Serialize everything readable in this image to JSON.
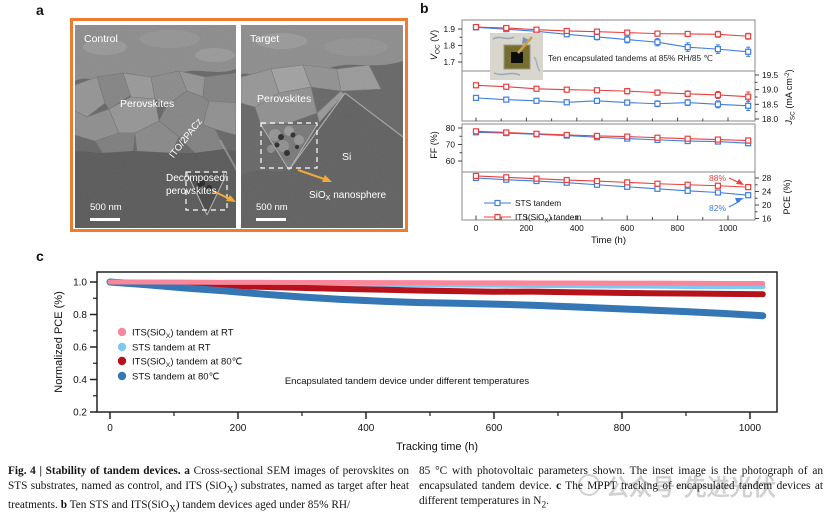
{
  "figure": {
    "letters": {
      "a": "a",
      "b": "b",
      "c": "c"
    }
  },
  "panel_a": {
    "border_color": "#ee7c30",
    "arrow_color": "#f2a93b",
    "control": {
      "tag": "Control",
      "layer": "Perovskites",
      "interface": "ITO/2PACz",
      "callout1": "Decomposed",
      "callout2": "perovskites",
      "scalebar": "500 nm"
    },
    "target": {
      "tag": "Target",
      "layer": "Perovskites",
      "si": "Si",
      "callout_pre": "SiO",
      "callout_sub": "X",
      "callout_post": " nanosphere",
      "scalebar": "500 nm"
    }
  },
  "chart_data": [
    {
      "id": "aging-parameters",
      "type": "line",
      "xlabel": "Time (h)",
      "note": "Ten encapsulated tandems at 85% RH/85 ℃",
      "x": [
        0,
        120,
        240,
        360,
        480,
        600,
        720,
        840,
        960,
        1080
      ],
      "xticks": [
        0,
        200,
        400,
        600,
        800,
        1000
      ],
      "xticklabels": [
        "0",
        "200",
        "400",
        "600",
        "800",
        "1000"
      ],
      "xminor": [
        100,
        300,
        500,
        700,
        900
      ],
      "colors": {
        "STS": "#3f7ee0",
        "ITS": "#e9403e"
      },
      "legend": [
        {
          "key": "STS",
          "runs": [
            {
              "t": "STS tandem"
            }
          ]
        },
        {
          "key": "ITS",
          "runs": [
            {
              "t": "ITS(SiO"
            },
            {
              "t": "X",
              "s": "sub"
            },
            {
              "t": ") tandem"
            }
          ]
        }
      ],
      "subplots": [
        {
          "name": "voc",
          "side": "left",
          "yticks": [
            1.7,
            1.8,
            1.9
          ],
          "yticklabels": [
            "1.7",
            "1.8",
            "1.9"
          ],
          "yminor": [
            1.75,
            1.85
          ],
          "ylabel_runs": [
            {
              "t": "V",
              "i": 1
            },
            {
              "t": "OC",
              "s": "sub"
            },
            {
              "t": " (V)"
            }
          ],
          "series": [
            {
              "key": "STS",
              "values": [
                1.91,
                1.899,
                1.886,
                1.868,
                1.852,
                1.836,
                1.82,
                1.79,
                1.778,
                1.762
              ],
              "err": [
                0.008,
                0.01,
                0.012,
                0.015,
                0.018,
                0.02,
                0.022,
                0.026,
                0.026,
                0.028
              ]
            },
            {
              "key": "ITS",
              "values": [
                1.912,
                1.906,
                1.896,
                1.888,
                1.884,
                1.878,
                1.872,
                1.87,
                1.868,
                1.856
              ],
              "err": [
                0.008,
                0.009,
                0.01,
                0.012,
                0.012,
                0.014,
                0.015,
                0.015,
                0.018,
                0.018
              ]
            }
          ]
        },
        {
          "name": "jsc",
          "side": "right",
          "yticks": [
            18.0,
            18.5,
            19.0,
            19.5
          ],
          "yticklabels": [
            "18.0",
            "18.5",
            "19.0",
            "19.5"
          ],
          "yminor": [
            18.25,
            18.75,
            19.25
          ],
          "ylabel_runs": [
            {
              "t": "J",
              "i": 1
            },
            {
              "t": "SC",
              "s": "sub"
            },
            {
              "t": " (mA cm"
            },
            {
              "t": "-2",
              "s": "sup"
            },
            {
              "t": ")"
            }
          ],
          "series": [
            {
              "key": "STS",
              "values": [
                18.72,
                18.66,
                18.62,
                18.57,
                18.62,
                18.56,
                18.52,
                18.56,
                18.5,
                18.45
              ],
              "err": [
                0.07,
                0.08,
                0.08,
                0.08,
                0.09,
                0.09,
                0.1,
                0.1,
                0.12,
                0.16
              ]
            },
            {
              "key": "ITS",
              "values": [
                19.15,
                19.1,
                19.03,
                19.0,
                18.98,
                18.95,
                18.9,
                18.86,
                18.82,
                18.76
              ],
              "err": [
                0.07,
                0.07,
                0.08,
                0.08,
                0.08,
                0.09,
                0.09,
                0.1,
                0.12,
                0.16
              ]
            }
          ]
        },
        {
          "name": "ff",
          "side": "left",
          "yticks": [
            60,
            70,
            80
          ],
          "yticklabels": [
            "60",
            "70",
            "80"
          ],
          "yminor": [
            65,
            75
          ],
          "ylabel_runs": [
            {
              "t": "FF (%)"
            }
          ],
          "series": [
            {
              "key": "STS",
              "values": [
                77.4,
                76.9,
                76.2,
                75.4,
                74.4,
                73.6,
                72.8,
                72.1,
                71.8,
                70.8
              ],
              "err": [
                0.8,
                0.8,
                0.9,
                0.9,
                1.0,
                1.0,
                1.1,
                1.1,
                1.2,
                1.5
              ]
            },
            {
              "key": "ITS",
              "values": [
                78.0,
                77.3,
                76.5,
                75.8,
                75.2,
                74.8,
                74.1,
                73.5,
                73.0,
                72.4
              ],
              "err": [
                0.8,
                0.8,
                0.9,
                0.9,
                1.0,
                1.0,
                1.0,
                1.1,
                1.2,
                1.6
              ]
            }
          ]
        },
        {
          "name": "pce",
          "side": "right",
          "yticks": [
            16,
            20,
            24,
            28
          ],
          "yticklabels": [
            "16",
            "20",
            "24",
            "28"
          ],
          "yminor": [
            18,
            22,
            26
          ],
          "ylabel_runs": [
            {
              "t": "PCE (%)"
            }
          ],
          "series": [
            {
              "key": "STS",
              "values": [
                28.0,
                27.5,
                27.1,
                26.6,
                26.0,
                25.4,
                24.8,
                24.2,
                23.7,
                22.9
              ],
              "err": [
                0.3,
                0.35,
                0.4,
                0.4,
                0.45,
                0.5,
                0.5,
                0.55,
                0.6,
                0.7
              ]
            },
            {
              "key": "ITS",
              "values": [
                28.6,
                28.2,
                27.8,
                27.4,
                27.1,
                26.7,
                26.3,
                26.0,
                25.7,
                25.3
              ],
              "err": [
                0.3,
                0.3,
                0.35,
                0.35,
                0.4,
                0.4,
                0.45,
                0.5,
                0.55,
                0.7
              ]
            }
          ],
          "annotations": [
            {
              "text": "88%",
              "key": "ITS"
            },
            {
              "text": "82%",
              "key": "STS"
            }
          ]
        }
      ]
    },
    {
      "id": "mppt-tracking",
      "type": "line",
      "xlabel": "Tracking time (h)",
      "ylabel": "Normalized PCE (%)",
      "note": "Encapsulated tandem device under different temperatures",
      "x": [
        0,
        60,
        120,
        180,
        240,
        300,
        360,
        420,
        480,
        540,
        600,
        660,
        720,
        780,
        840,
        900,
        960,
        1020
      ],
      "xticks": [
        0,
        200,
        400,
        600,
        800,
        1000
      ],
      "xticklabels": [
        "0",
        "200",
        "400",
        "600",
        "800",
        "1000"
      ],
      "xminor": [
        100,
        300,
        500,
        700,
        900
      ],
      "yticks": [
        0.2,
        0.4,
        0.6,
        0.8,
        1.0
      ],
      "yticklabels": [
        "0.2",
        "0.4",
        "0.6",
        "0.8",
        "1.0"
      ],
      "yminor": [
        0.3,
        0.5,
        0.7,
        0.9
      ],
      "ylim": [
        0.195,
        1.062
      ],
      "series": [
        {
          "name": "ITS(SiOX) tandem at RT",
          "color": "#f9879b",
          "width": 5,
          "runs": [
            {
              "t": "ITS(SiO"
            },
            {
              "t": "X",
              "s": "sub"
            },
            {
              "t": ") tandem at RT"
            }
          ],
          "values": [
            1.0,
            1.0,
            0.999,
            0.998,
            0.998,
            0.997,
            0.997,
            0.996,
            0.996,
            0.995,
            0.995,
            0.994,
            0.994,
            0.993,
            0.993,
            0.992,
            0.991,
            0.991
          ]
        },
        {
          "name": "STS tandem at RT",
          "color": "#7fc9f1",
          "width": 5.5,
          "runs": [
            {
              "t": "STS tandem at RT"
            }
          ],
          "values": [
            1.0,
            0.998,
            0.996,
            0.993,
            0.991,
            0.989,
            0.988,
            0.986,
            0.985,
            0.983,
            0.982,
            0.98,
            0.979,
            0.977,
            0.976,
            0.974,
            0.973,
            0.972
          ]
        },
        {
          "name": "ITS(SiOX) tandem at 80℃",
          "color": "#b5121b",
          "width": 6,
          "runs": [
            {
              "t": "ITS(SiO"
            },
            {
              "t": "X",
              "s": "sub"
            },
            {
              "t": ") tandem at 80℃"
            }
          ],
          "values": [
            1.0,
            0.992,
            0.984,
            0.977,
            0.97,
            0.964,
            0.958,
            0.953,
            0.948,
            0.944,
            0.94,
            0.941,
            0.937,
            0.934,
            0.931,
            0.929,
            0.927,
            0.925
          ]
        },
        {
          "name": "STS tandem at 80℃",
          "color": "#3577b4",
          "width": 7,
          "runs": [
            {
              "t": "STS tandem at 80℃"
            }
          ],
          "values": [
            1.0,
            0.982,
            0.962,
            0.945,
            0.925,
            0.908,
            0.893,
            0.882,
            0.874,
            0.869,
            0.864,
            0.857,
            0.848,
            0.838,
            0.828,
            0.818,
            0.806,
            0.792
          ]
        }
      ]
    }
  ],
  "caption": {
    "left": [
      {
        "t": "Fig. 4 | Stability of tandem devices. ",
        "b": 1
      },
      {
        "t": "a",
        "b": 1
      },
      {
        "t": " Cross-sectional SEM images of perovskites on STS substrates, named as control, and ITS (SiO"
      },
      {
        "t": "X",
        "sub": 1
      },
      {
        "t": ") substrates, named as target after heat treatments. "
      },
      {
        "t": "b",
        "b": 1
      },
      {
        "t": " Ten STS and ITS(SiO"
      },
      {
        "t": "X",
        "sub": 1
      },
      {
        "t": ") tandem devices aged under 85% RH/"
      }
    ],
    "right": [
      {
        "t": "85 °C with photovoltaic parameters shown. The inset image is the photograph of an encapsulated tandem device. "
      },
      {
        "t": "c",
        "b": 1
      },
      {
        "t": " The MPPT tracking of encapsulated tandem devices at different temperatures in N"
      },
      {
        "t": "2",
        "sub": 1
      },
      {
        "t": "."
      }
    ]
  },
  "watermark": {
    "text": "公众号·先进光伏"
  }
}
